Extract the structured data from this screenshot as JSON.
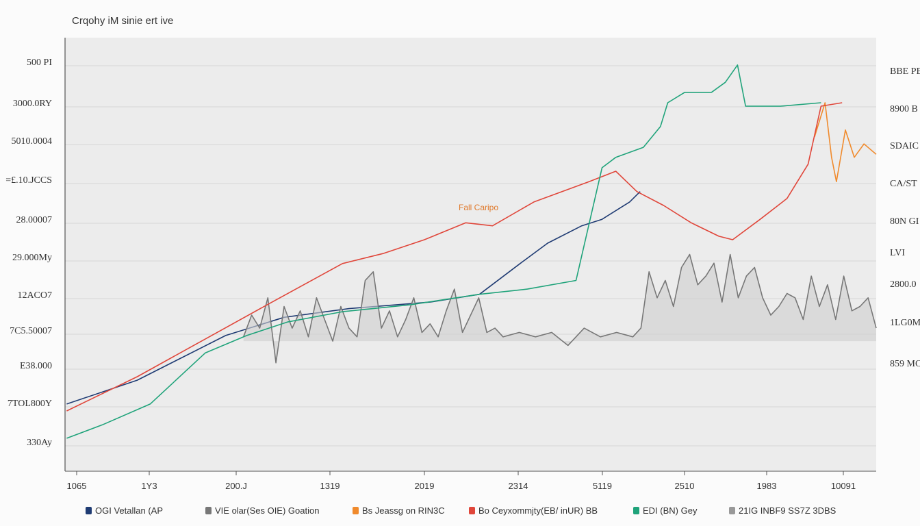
{
  "chart_data": {
    "type": "line",
    "title": "Crqohy iM sinie ert ive",
    "annotation": "Fall Caripo",
    "xlim": [
      0,
      100
    ],
    "ylim": [
      0,
      100
    ],
    "grid": true,
    "legend_placement": "bottom",
    "y_ticks_left": [
      "500 PI",
      "3000.0RY",
      "5010.0004",
      "=£.10.JCCS",
      "28.00007",
      "29.000My",
      "12ACO7",
      "7C5.50007",
      "E38.000",
      "7TOL800Y",
      "330Ay"
    ],
    "y_ticks_right": [
      "BBE PB",
      "8900 B",
      "SDAIC",
      "CA/ST",
      "80N GI",
      "LVI",
      "2800.0",
      "1LG0M",
      "859 MC"
    ],
    "x_ticks": [
      "1065",
      "1Y3",
      "200.J",
      "1319",
      "2019",
      "2314",
      "5119",
      "2510",
      "1983",
      "10091"
    ],
    "series": [
      {
        "name": "OGI Vetallan (AP",
        "color": "#1f3b73",
        "x": [
          0.2,
          8.9,
          19.8,
          27,
          35,
          45,
          51.1,
          56.1,
          59.5,
          63.7,
          66.2,
          69.6,
          70.9
        ],
        "y": [
          15.5,
          21,
          31.3,
          35.5,
          37.5,
          39,
          40.8,
          47.9,
          52.6,
          56.6,
          58.1,
          62.1,
          64.5
        ]
      },
      {
        "name": "VIE olar(Ses OIE) Goation",
        "color": "#777777",
        "x": [
          22,
          23,
          24,
          25,
          26,
          27,
          28,
          29,
          30,
          31,
          32,
          33,
          34,
          35,
          36,
          37,
          38,
          39,
          40,
          41,
          42,
          43,
          44,
          45,
          46,
          47,
          48,
          49,
          50,
          51,
          52,
          53,
          54,
          56,
          58,
          60,
          62,
          64,
          66,
          68,
          70,
          71,
          72,
          73,
          74,
          75,
          76,
          77,
          78,
          79,
          80,
          81,
          82,
          83,
          84,
          85,
          86,
          87,
          88,
          89,
          90,
          91,
          92,
          93,
          94,
          95,
          96,
          97,
          98,
          99,
          100
        ],
        "y": [
          31,
          36,
          33,
          40,
          25,
          38,
          33,
          37,
          31,
          40,
          35,
          30,
          38,
          33,
          31,
          44,
          46,
          33,
          37,
          31,
          35,
          40,
          32,
          34,
          31,
          37,
          42,
          32,
          36,
          40,
          32,
          33,
          31,
          32,
          31,
          32,
          29,
          33,
          31,
          32,
          31,
          33,
          46,
          40,
          44,
          38,
          47,
          50,
          43,
          45,
          48,
          39,
          50,
          40,
          45,
          47,
          40,
          36,
          38,
          41,
          40,
          35,
          45,
          38,
          43,
          35,
          45,
          37,
          38,
          40,
          33
        ]
      },
      {
        "name": "Bs Jeassg on RIN3C",
        "color": "#f08a2c",
        "x": [
          92.4,
          93.7,
          94.5,
          95.1,
          96.2,
          97.3,
          98.5,
          100
        ],
        "y": [
          77.1,
          85,
          72.4,
          66.8,
          78.7,
          72.4,
          75.5,
          73.1
        ]
      },
      {
        "name": "Bo Ceyxommjty(EB/ inUR) BB",
        "color": "#e0463a",
        "x": [
          0.2,
          8.9,
          17.3,
          25.7,
          34.2,
          39.2,
          44.3,
          49.4,
          52.7,
          57.8,
          64.6,
          67.9,
          70.5,
          73.8,
          77.2,
          80.6,
          82.3,
          85.7,
          89,
          91.6,
          93.2,
          95.8
        ],
        "y": [
          13.9,
          21.8,
          30.5,
          39.2,
          47.9,
          50.2,
          53.4,
          57.3,
          56.6,
          62.1,
          66.8,
          69.2,
          64.5,
          61.3,
          57.3,
          54.2,
          53.4,
          58.1,
          62.9,
          70.8,
          84.2,
          85
        ]
      },
      {
        "name": "EDI (BN) Gey",
        "color": "#1fa37a",
        "x": [
          0.2,
          4.6,
          10.5,
          17.3,
          22.4,
          27.4,
          34.2,
          42.6,
          51.1,
          57,
          63,
          66.2,
          67.9,
          71.3,
          73.4,
          74.3,
          76.4,
          79.7,
          81.4,
          82.9,
          83.9,
          88.2,
          93.2
        ],
        "y": [
          7.6,
          10.7,
          15.5,
          27.3,
          31.3,
          34.4,
          36.8,
          38.4,
          40.8,
          42,
          44,
          70,
          72.4,
          74.7,
          79.5,
          85,
          87.4,
          87.4,
          89.7,
          93.7,
          84.2,
          84.2,
          85
        ]
      },
      {
        "name": "21IG INBF9 SS7Z 3DBS",
        "color": "#999999",
        "x": [],
        "y": []
      }
    ]
  }
}
